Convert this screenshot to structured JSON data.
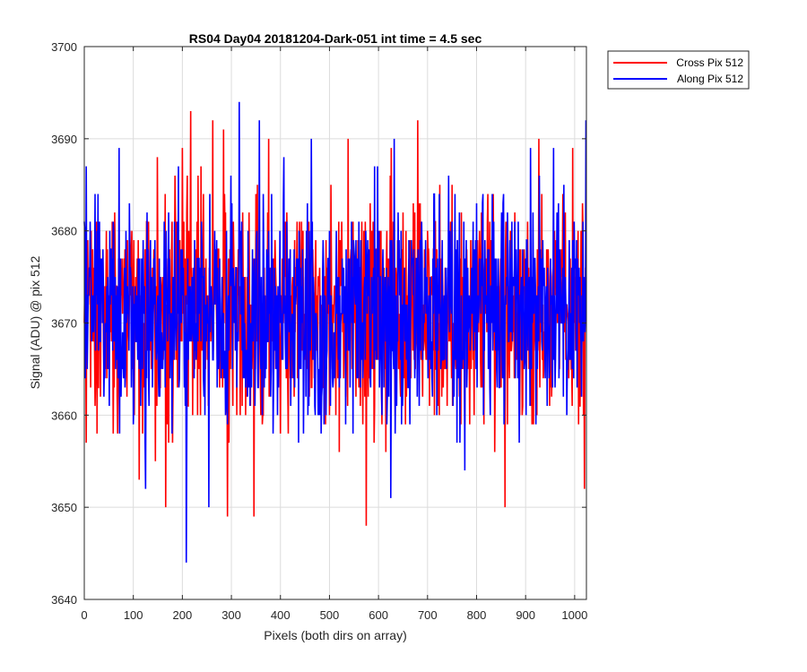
{
  "chart_data": {
    "type": "line",
    "title": "RS04 Day04 20181204-Dark-051 int time = 4.5 sec",
    "xlabel": "Pixels (both dirs on array)",
    "ylabel": "Signal (ADU) @ pix 512",
    "xlim": [
      0,
      1024
    ],
    "ylim": [
      3640,
      3700
    ],
    "xticks": [
      0,
      100,
      200,
      300,
      400,
      500,
      600,
      700,
      800,
      900,
      1000
    ],
    "yticks": [
      3640,
      3650,
      3660,
      3670,
      3680,
      3690,
      3700
    ],
    "grid": true,
    "legend_position": "outside-top-right",
    "colors": {
      "cross": "#ff0000",
      "along": "#0000ff",
      "grid": "#dcdcdc",
      "axis": "#262626"
    },
    "series": [
      {
        "name": "Cross Pix 512",
        "key": "cross",
        "mean": 3671,
        "sd": 6.2,
        "n": 1024,
        "extremes": [
          {
            "x": 166,
            "y": 3650
          },
          {
            "x": 200,
            "y": 3689
          },
          {
            "x": 217,
            "y": 3693
          },
          {
            "x": 262,
            "y": 3692
          },
          {
            "x": 292,
            "y": 3649
          },
          {
            "x": 376,
            "y": 3690
          },
          {
            "x": 575,
            "y": 3648
          },
          {
            "x": 680,
            "y": 3692
          },
          {
            "x": 858,
            "y": 3650
          },
          {
            "x": 1020,
            "y": 3652
          }
        ]
      },
      {
        "name": "Along Pix 512",
        "key": "along",
        "mean": 3671,
        "sd": 6.0,
        "n": 1024,
        "extremes": [
          {
            "x": 4,
            "y": 3687
          },
          {
            "x": 71,
            "y": 3689
          },
          {
            "x": 125,
            "y": 3652
          },
          {
            "x": 208,
            "y": 3644
          },
          {
            "x": 316,
            "y": 3694
          },
          {
            "x": 463,
            "y": 3690
          },
          {
            "x": 632,
            "y": 3690
          },
          {
            "x": 776,
            "y": 3654
          },
          {
            "x": 1023,
            "y": 3692
          }
        ]
      }
    ]
  }
}
